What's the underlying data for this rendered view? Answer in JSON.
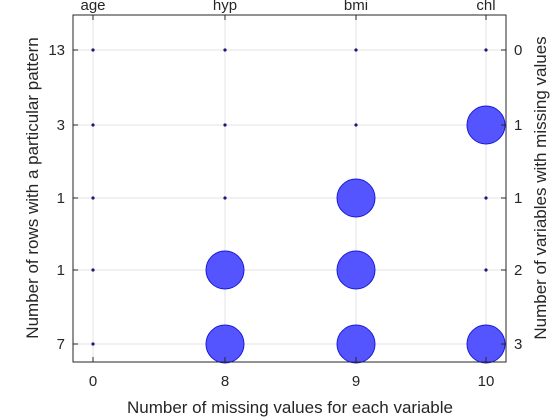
{
  "chart_data": {
    "type": "scatter",
    "title": "",
    "xlabel": "Number of missing values for each variable",
    "ylabel_left": "Number of rows with a particular pattern",
    "ylabel_right": "Number of variables with missing values",
    "columns": [
      "age",
      "hyp",
      "bmi",
      "chl"
    ],
    "column_missing_counts": [
      "0",
      "8",
      "9",
      "10"
    ],
    "rows": [
      {
        "count": "13",
        "num_missing_vars": "0",
        "missing": [
          false,
          false,
          false,
          false
        ]
      },
      {
        "count": "3",
        "num_missing_vars": "1",
        "missing": [
          false,
          false,
          false,
          true
        ]
      },
      {
        "count": "1",
        "num_missing_vars": "1",
        "missing": [
          false,
          false,
          true,
          false
        ]
      },
      {
        "count": "1",
        "num_missing_vars": "2",
        "missing": [
          false,
          true,
          true,
          false
        ]
      },
      {
        "count": "7",
        "num_missing_vars": "3",
        "missing": [
          false,
          true,
          true,
          true
        ]
      }
    ],
    "grid": true,
    "marker_color": "#5555ff",
    "marker_edge_color": "#1a1ad9",
    "dot_color": "#1a1a7a"
  }
}
